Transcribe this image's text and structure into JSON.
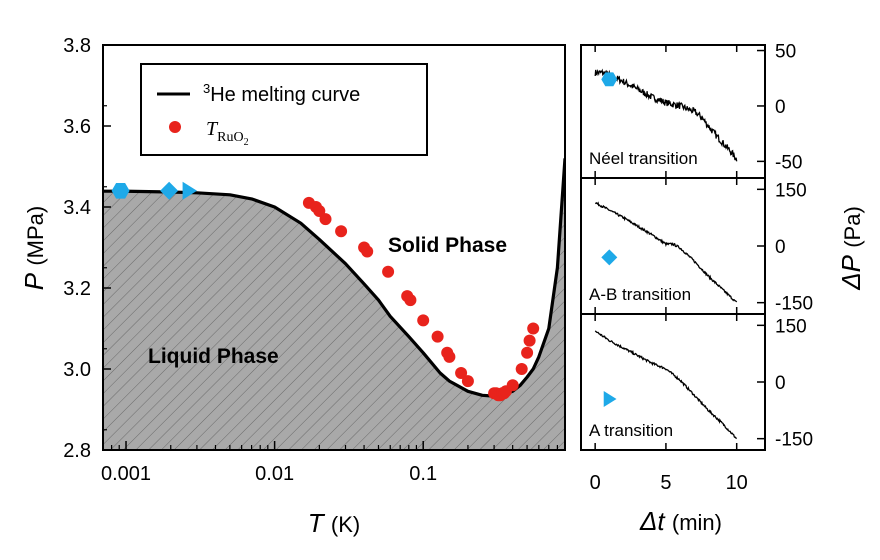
{
  "chart_data": [
    {
      "type": "scatter",
      "xscale": "log",
      "xlim": [
        0.0007,
        0.9
      ],
      "ylim": [
        2.8,
        3.8
      ],
      "xticks": [
        "0.001",
        "0.01",
        "0.1"
      ],
      "yticks": [
        "2.8",
        "3.0",
        "3.2",
        "3.4",
        "3.6",
        "3.8"
      ],
      "xlabel_italic": "T",
      "xlabel_unit": "(K)",
      "ylabel_italic": "P",
      "ylabel_unit": "(MPa)",
      "annotations": {
        "solid": "Solid Phase",
        "liquid": "Liquid Phase"
      },
      "legend": {
        "position": "top-left",
        "line_sup": "3",
        "line_label": "He melting curve",
        "dot_label_main": "T",
        "dot_label_sub": "RuO",
        "dot_label_sub2": "2"
      },
      "series": [
        {
          "type": "line",
          "color": "#000000",
          "x": [
            0.0007,
            0.001,
            0.002,
            0.003,
            0.005,
            0.007,
            0.01,
            0.015,
            0.02,
            0.03,
            0.04,
            0.05,
            0.06,
            0.08,
            0.1,
            0.13,
            0.15,
            0.2,
            0.25,
            0.3,
            0.32,
            0.35,
            0.4,
            0.45,
            0.5,
            0.55,
            0.6,
            0.7,
            0.8,
            0.9
          ],
          "y": [
            3.439,
            3.439,
            3.437,
            3.435,
            3.43,
            3.42,
            3.4,
            3.36,
            3.32,
            3.26,
            3.21,
            3.17,
            3.13,
            3.08,
            3.04,
            2.99,
            2.97,
            2.945,
            2.935,
            2.933,
            2.934,
            2.937,
            2.945,
            2.96,
            2.98,
            3.0,
            3.03,
            3.1,
            3.25,
            3.52
          ]
        },
        {
          "type": "scatter",
          "color": "#e8231c",
          "x": [
            0.017,
            0.019,
            0.02,
            0.022,
            0.028,
            0.04,
            0.042,
            0.058,
            0.078,
            0.082,
            0.1,
            0.125,
            0.145,
            0.15,
            0.18,
            0.2,
            0.3,
            0.31,
            0.32,
            0.33,
            0.34,
            0.35,
            0.36,
            0.4,
            0.46,
            0.5,
            0.52,
            0.55
          ],
          "y": [
            3.41,
            3.4,
            3.39,
            3.37,
            3.34,
            3.3,
            3.29,
            3.24,
            3.18,
            3.17,
            3.12,
            3.08,
            3.04,
            3.03,
            2.99,
            2.97,
            2.94,
            2.94,
            2.935,
            2.935,
            2.94,
            2.94,
            2.945,
            2.96,
            3.0,
            3.04,
            3.07,
            3.1
          ]
        }
      ],
      "transition_markers": [
        {
          "shape": "hexagon",
          "color": "#1ea9e8",
          "x": 0.00092,
          "y": 3.44
        },
        {
          "shape": "diamond",
          "color": "#1ea9e8",
          "x": 0.00195,
          "y": 3.44
        },
        {
          "shape": "triangle-right",
          "color": "#1ea9e8",
          "x": 0.00265,
          "y": 3.44
        }
      ]
    },
    {
      "type": "line",
      "xlim": [
        -1,
        12
      ],
      "xticks": [
        "0",
        "5",
        "10"
      ],
      "xlabel_italic": "Δt",
      "xlabel_unit": "(min)",
      "ylabel_italic": "ΔP",
      "ylabel_unit": "(Pa)",
      "panels": [
        {
          "label": "Néel transition",
          "marker": "hexagon",
          "ylim": [
            -65,
            55
          ],
          "yticks": [
            "50",
            "0",
            "-50"
          ],
          "ytick_values": [
            50,
            0,
            -50
          ],
          "marker_pos": [
            1,
            24
          ],
          "noise": 3,
          "x": [
            0,
            0.5,
            1,
            2,
            3,
            4,
            5,
            6,
            7,
            7.5,
            8,
            8.5,
            9,
            9.5,
            10
          ],
          "y": [
            30,
            30,
            28,
            22,
            15,
            8,
            3,
            0,
            -5,
            -10,
            -18,
            -26,
            -33,
            -40,
            -48
          ]
        },
        {
          "label": "A-B transition",
          "marker": "diamond",
          "ylim": [
            -180,
            180
          ],
          "yticks": [
            "150",
            "0",
            "-150"
          ],
          "ytick_values": [
            150,
            0,
            -150
          ],
          "marker_pos": [
            1,
            -30
          ],
          "noise": 3,
          "x": [
            0,
            2,
            4,
            5,
            5.5,
            6,
            7,
            8,
            9,
            10
          ],
          "y": [
            115,
            75,
            30,
            5,
            5,
            -5,
            -40,
            -80,
            -115,
            -150
          ]
        },
        {
          "label": "A transition",
          "marker": "triangle-right",
          "ylim": [
            -180,
            180
          ],
          "yticks": [
            "150",
            "0",
            "-150"
          ],
          "ytick_values": [
            150,
            0,
            -150
          ],
          "marker_pos": [
            1,
            -45
          ],
          "noise": 3,
          "x": [
            0,
            1,
            2,
            3,
            4,
            5,
            6,
            7,
            8,
            9,
            10
          ],
          "y": [
            135,
            110,
            90,
            70,
            50,
            35,
            5,
            -35,
            -75,
            -110,
            -150
          ]
        }
      ]
    }
  ]
}
